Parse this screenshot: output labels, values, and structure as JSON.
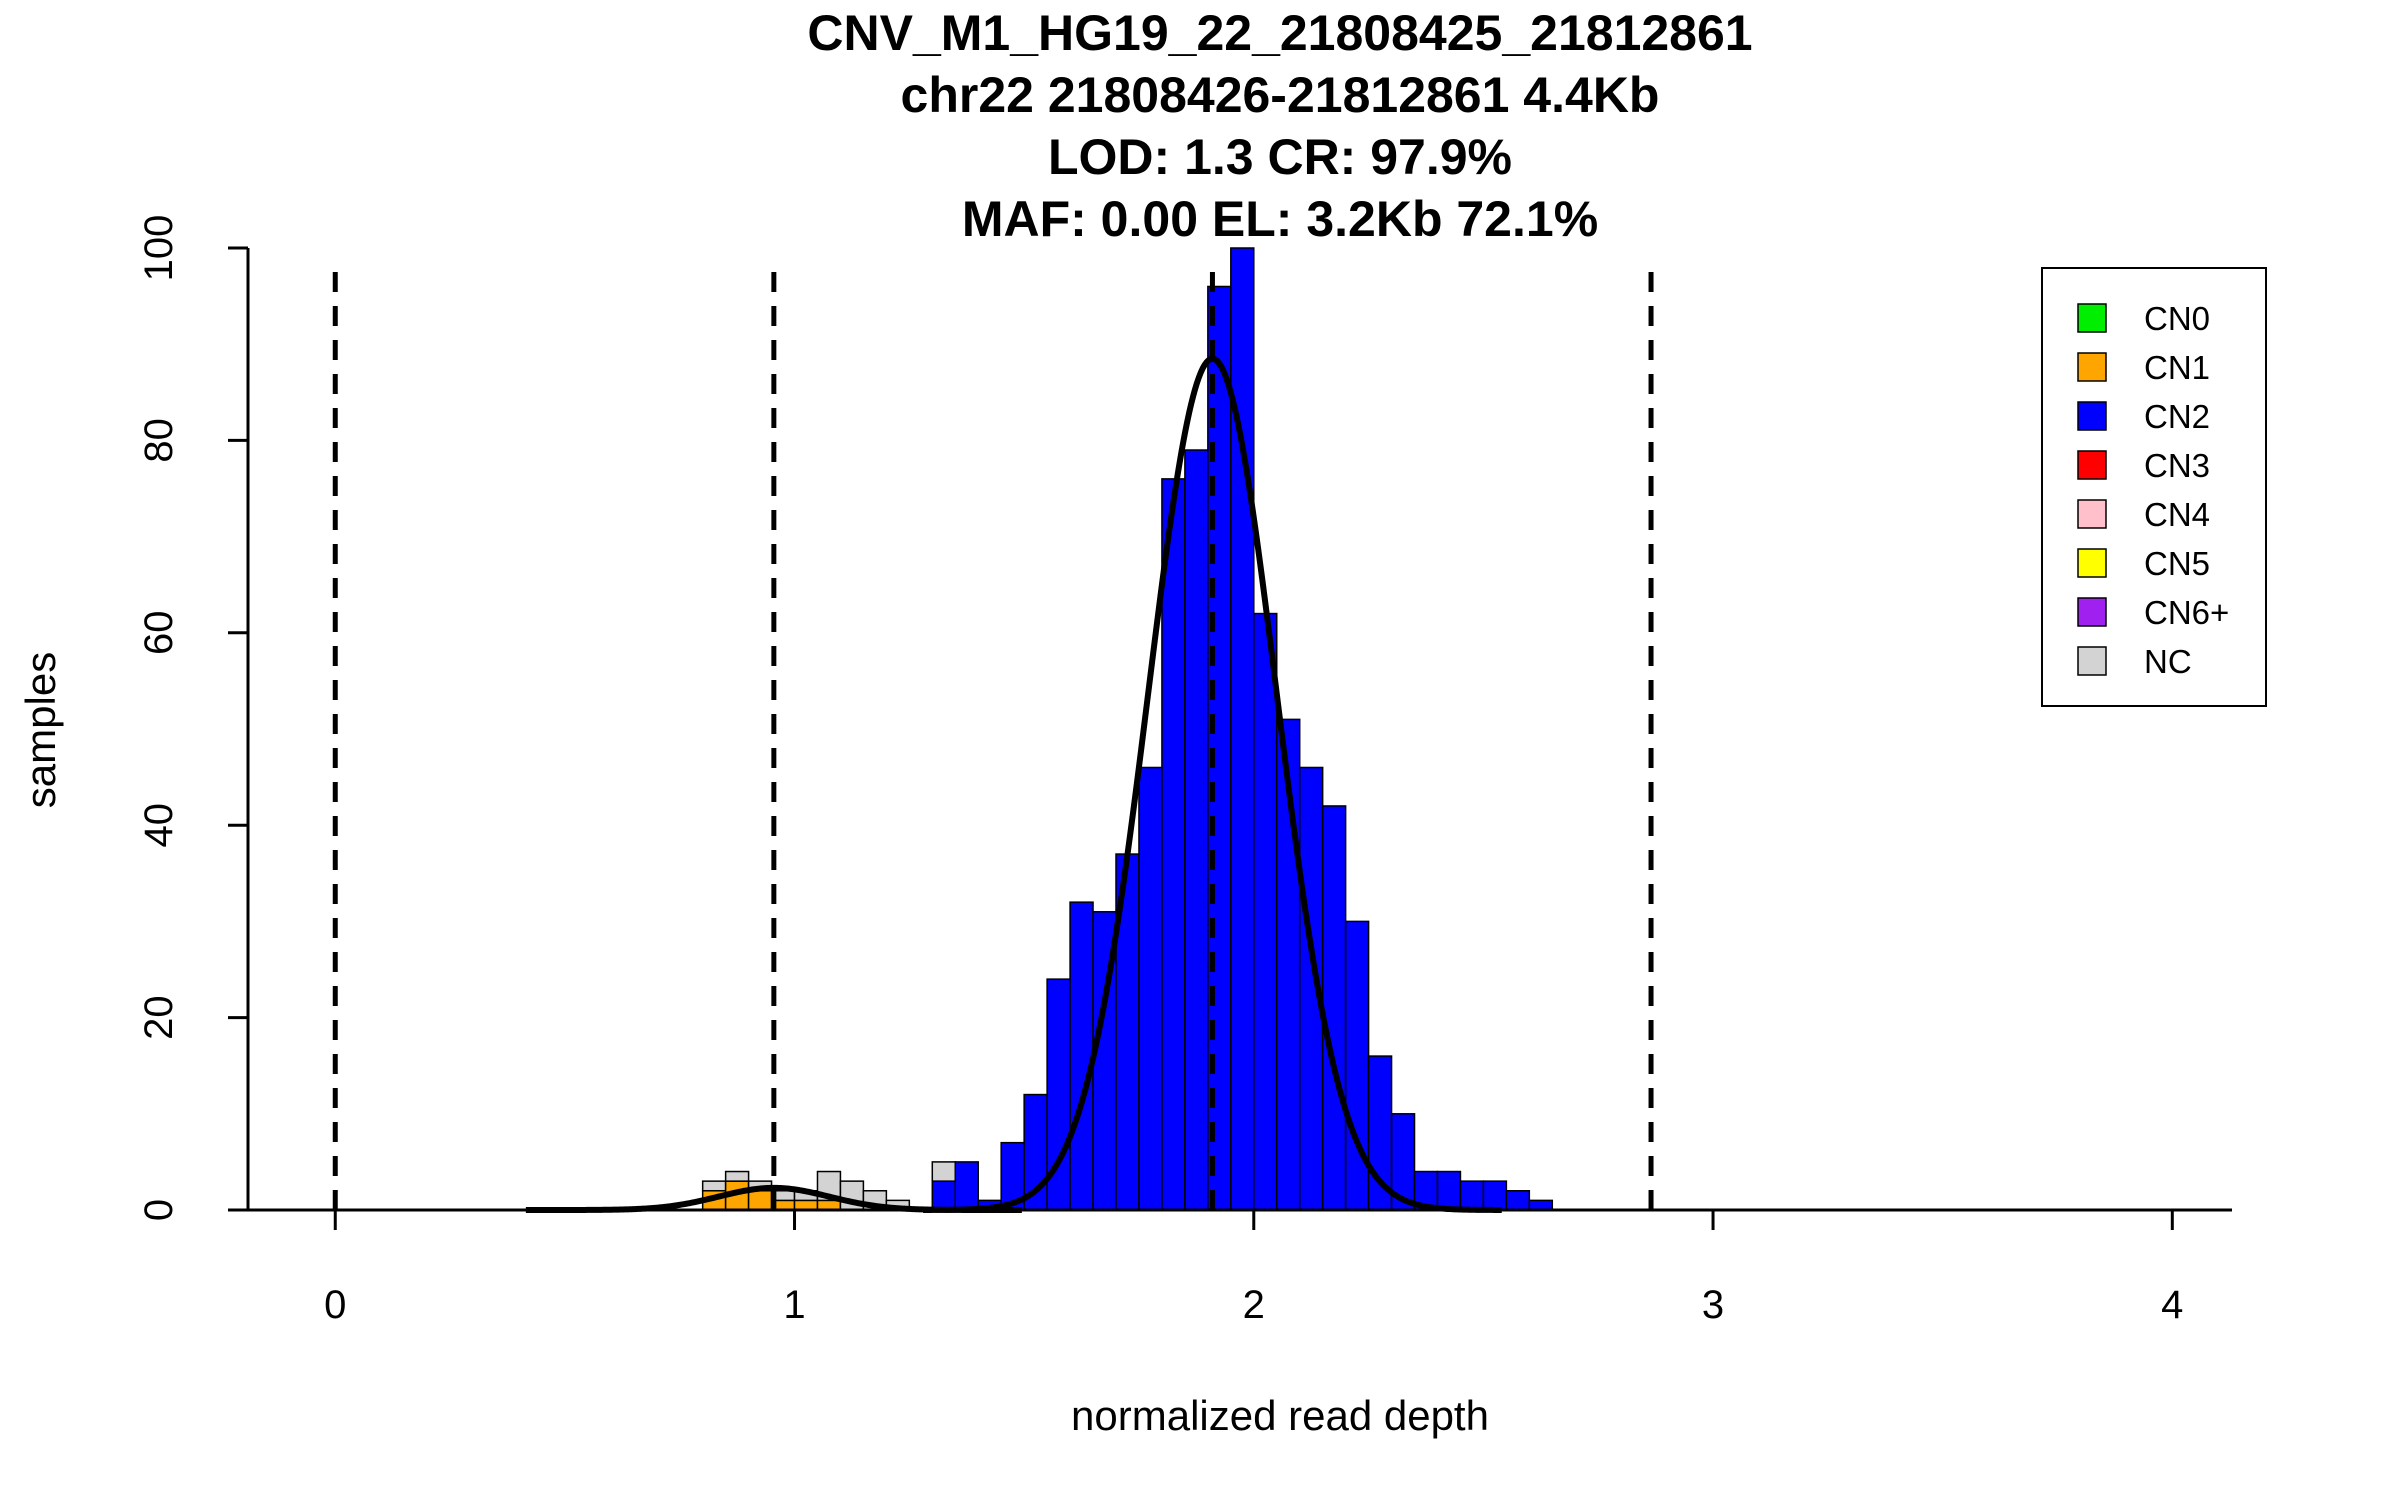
{
  "chart_data": {
    "type": "bar",
    "title_lines": [
      "CNV_M1_HG19_22_21808425_21812861",
      "chr22 21808426-21812861 4.4Kb",
      "LOD: 1.3 CR: 97.9%",
      "MAF: 0.00 EL: 3.2Kb 72.1%"
    ],
    "xlabel": "normalized read depth",
    "ylabel": "samples",
    "xlim": [
      -0.19,
      4.13
    ],
    "ylim": [
      0,
      100
    ],
    "x_ticks": [
      "0",
      "1",
      "2",
      "3",
      "4"
    ],
    "y_ticks": [
      "0",
      "20",
      "40",
      "60",
      "80",
      "100"
    ],
    "bin_width": 0.05,
    "bins": [
      {
        "x": 0.8,
        "CN1": 2,
        "NC": 1
      },
      {
        "x": 0.85,
        "CN1": 3,
        "NC": 1
      },
      {
        "x": 0.9,
        "CN1": 2,
        "NC": 1
      },
      {
        "x": 0.95,
        "CN1": 1,
        "NC": 1
      },
      {
        "x": 1.0,
        "CN1": 1,
        "NC": 1
      },
      {
        "x": 1.05,
        "CN1": 1,
        "NC": 3
      },
      {
        "x": 1.1,
        "NC": 3
      },
      {
        "x": 1.15,
        "NC": 2
      },
      {
        "x": 1.2,
        "NC": 1
      },
      {
        "x": 1.3,
        "CN2": 3,
        "NC": 2
      },
      {
        "x": 1.35,
        "CN2": 5
      },
      {
        "x": 1.4,
        "CN2": 1
      },
      {
        "x": 1.45,
        "CN2": 7
      },
      {
        "x": 1.5,
        "CN2": 12
      },
      {
        "x": 1.55,
        "CN2": 24
      },
      {
        "x": 1.6,
        "CN2": 32
      },
      {
        "x": 1.65,
        "CN2": 31
      },
      {
        "x": 1.7,
        "CN2": 37
      },
      {
        "x": 1.75,
        "CN2": 46
      },
      {
        "x": 1.8,
        "CN2": 76
      },
      {
        "x": 1.85,
        "CN2": 79
      },
      {
        "x": 1.9,
        "CN2": 96
      },
      {
        "x": 1.95,
        "CN2": 100
      },
      {
        "x": 2.0,
        "CN2": 62
      },
      {
        "x": 2.05,
        "CN2": 51
      },
      {
        "x": 2.1,
        "CN2": 46
      },
      {
        "x": 2.15,
        "CN2": 42
      },
      {
        "x": 2.2,
        "CN2": 30
      },
      {
        "x": 2.25,
        "CN2": 16
      },
      {
        "x": 2.3,
        "CN2": 10
      },
      {
        "x": 2.35,
        "CN2": 4
      },
      {
        "x": 2.4,
        "CN2": 4
      },
      {
        "x": 2.45,
        "CN2": 3
      },
      {
        "x": 2.5,
        "CN2": 3
      },
      {
        "x": 2.55,
        "CN2": 2
      },
      {
        "x": 2.6,
        "CN2": 1
      }
    ],
    "fit_curves": [
      {
        "mean": 0.955,
        "sd": 0.12,
        "peak": 2.3
      },
      {
        "mean": 1.91,
        "sd": 0.14,
        "peak": 88.5
      }
    ],
    "dashed_lines_x": [
      0,
      0.955,
      1.91,
      2.865
    ],
    "baseline_segments": [
      [
        -0.19,
        0.24
      ],
      [
        0.43,
        1.35
      ],
      [
        2.6,
        3.78
      ]
    ],
    "legend": {
      "position": "top-right",
      "entries": [
        {
          "label": "CN0",
          "color": "#00ee00"
        },
        {
          "label": "CN1",
          "color": "#ffa500"
        },
        {
          "label": "CN2",
          "color": "#0000ff"
        },
        {
          "label": "CN3",
          "color": "#ff0000"
        },
        {
          "label": "CN4",
          "color": "#ffc0cb"
        },
        {
          "label": "CN5",
          "color": "#ffff00"
        },
        {
          "label": "CN6+",
          "color": "#a020f0"
        },
        {
          "label": "NC",
          "color": "#d3d3d3"
        }
      ]
    }
  }
}
